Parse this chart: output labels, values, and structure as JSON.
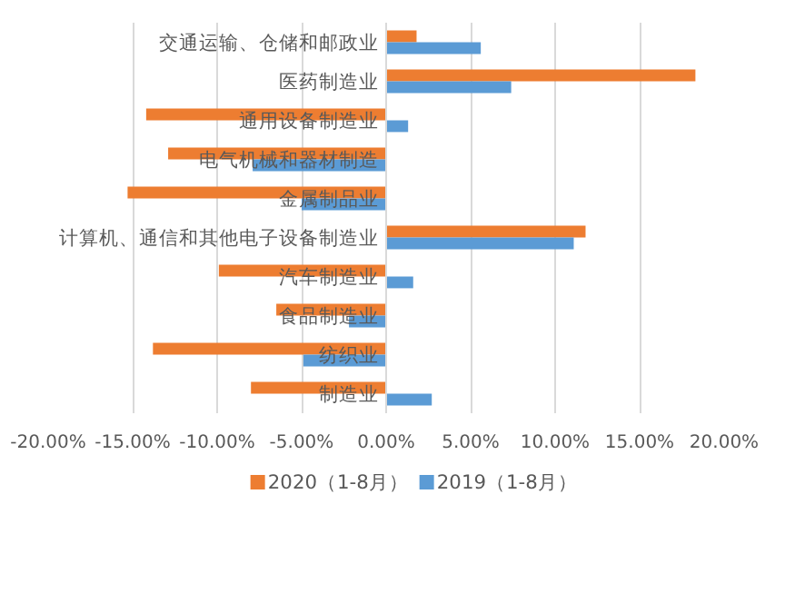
{
  "chart_data": {
    "type": "bar",
    "orientation": "horizontal",
    "categories": [
      "交通运输、仓储和邮政业",
      "医药制造业",
      "通用设备制造业",
      "电气机械和器材制造",
      "金属制品业",
      "计算机、通信和其他电子设备制造业",
      "汽车制造业",
      "食品制造业",
      "纺织业",
      "制造业"
    ],
    "series": [
      {
        "name": "2020（1-8月）",
        "color": "#ed7d31",
        "values": [
          1.8,
          18.3,
          -14.2,
          -12.9,
          -15.3,
          11.8,
          -9.9,
          -6.5,
          -13.8,
          -8.0
        ]
      },
      {
        "name": "2019（1-8月）",
        "color": "#5b9bd5",
        "values": [
          5.6,
          7.4,
          1.3,
          -7.9,
          -5.0,
          11.1,
          1.6,
          -2.2,
          -4.9,
          2.7
        ]
      }
    ],
    "xlim": [
      -20,
      20
    ],
    "xticks": [
      {
        "value": -20,
        "label": "-20.00%"
      },
      {
        "value": -15,
        "label": "-15.00%"
      },
      {
        "value": -10,
        "label": "-10.00%"
      },
      {
        "value": -5,
        "label": "-5.00%"
      },
      {
        "value": 0,
        "label": "0.00%"
      },
      {
        "value": 5,
        "label": "5.00%"
      },
      {
        "value": 10,
        "label": "10.00%"
      },
      {
        "value": 15,
        "label": "15.00%"
      },
      {
        "value": 20,
        "label": "20.00%"
      }
    ],
    "grid": "x",
    "legend": "bottom"
  }
}
